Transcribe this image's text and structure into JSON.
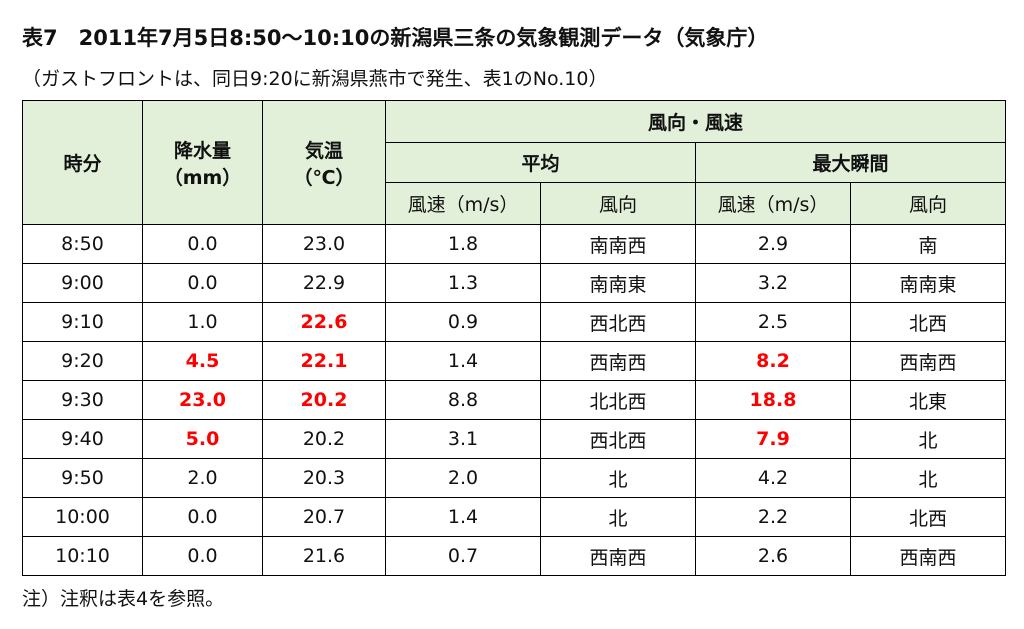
{
  "title": "表7　2011年7月5日8:50～10:10の新潟県三条の気象観測データ（気象庁）",
  "subtitle": "（ガストフロントは、同日9:20に新潟県燕市で発生、表1のNo.10）",
  "highlight_color": "#ff0000",
  "header_color": "#e2efd9",
  "table": {
    "header": {
      "time": "時分",
      "precip": [
        "降水量",
        "（mm）"
      ],
      "temp": [
        "気温",
        "（℃）"
      ],
      "wind": "風向・風速",
      "average": "平均",
      "max": "最大瞬間",
      "columns": [
        "風速（m/s）",
        "風向",
        "風速（m/s）",
        "風向"
      ]
    },
    "rows": [
      [
        "8:50",
        "0.0",
        "23.0",
        "1.8",
        "南南西",
        "2.9",
        "南"
      ],
      [
        "9:00",
        "0.0",
        "22.9",
        "1.3",
        "南南東",
        "3.2",
        "南南東"
      ],
      [
        "9:10",
        "1.0",
        {
          "text": "22.6",
          "highlight": true
        },
        "0.9",
        "西北西",
        "2.5",
        "北西"
      ],
      [
        "9:20",
        {
          "text": "4.5",
          "highlight": true
        },
        {
          "text": "22.1",
          "highlight": true
        },
        "1.4",
        "西南西",
        {
          "text": "8.2",
          "highlight": true
        },
        "西南西"
      ],
      [
        "9:30",
        {
          "text": "23.0",
          "highlight": true
        },
        {
          "text": "20.2",
          "highlight": true
        },
        "8.8",
        "北北西",
        {
          "text": "18.8",
          "highlight": true
        },
        "北東"
      ],
      [
        "9:40",
        {
          "text": "5.0",
          "highlight": true
        },
        "20.2",
        "3.1",
        "西北西",
        {
          "text": "7.9",
          "highlight": true
        },
        "北"
      ],
      [
        "9:50",
        "2.0",
        "20.3",
        "2.0",
        "北",
        "4.2",
        "北"
      ],
      [
        "10:00",
        "0.0",
        "20.7",
        "1.4",
        "北",
        "2.2",
        "北西"
      ],
      [
        "10:10",
        "0.0",
        "21.6",
        "0.7",
        "西南西",
        "2.6",
        "西南西"
      ]
    ]
  },
  "footnote": "注）注釈は表4を参照。"
}
